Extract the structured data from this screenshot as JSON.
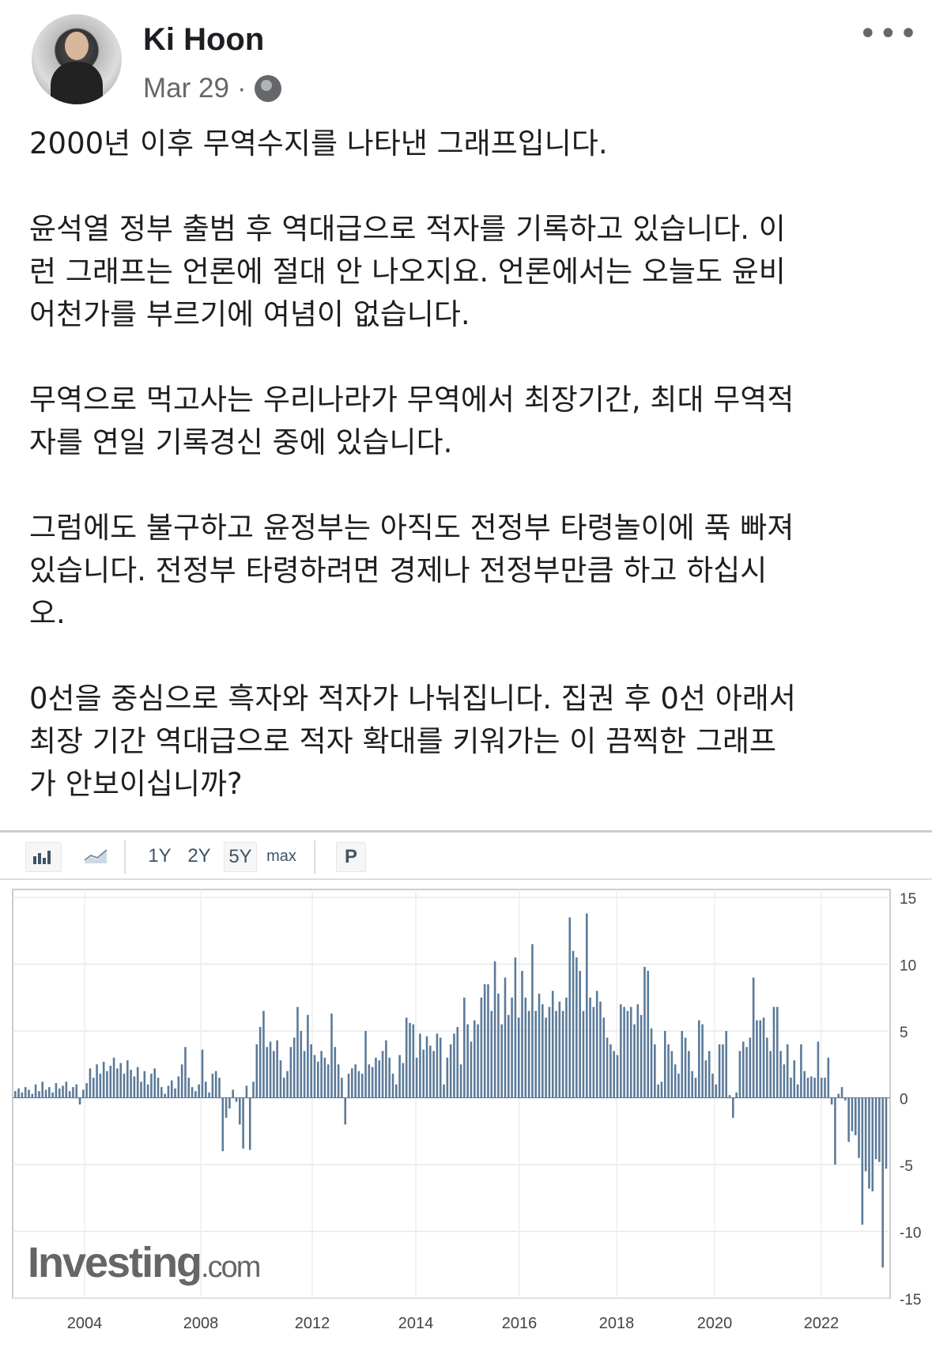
{
  "post": {
    "author": "Ki Hoon",
    "date": "Mar 29",
    "separator": "·",
    "privacy_icon": "globe-icon",
    "more_icon": "more-horizontal-icon",
    "more_label": "•••",
    "paragraphs": [
      [
        "2000년 이후 무역수지를 나타낸 그래프입니다."
      ],
      [
        "윤석열 정부 출범 후 역대급으로 적자를 기록하고 있습니다. 이",
        "런 그래프는 언론에 절대 안 나오지요. 언론에서는 오늘도 윤비",
        "어천가를 부르기에 여념이 없습니다."
      ],
      [
        "무역으로 먹고사는 우리나라가 무역에서 최장기간, 최대 무역적",
        "자를 연일 기록경신 중에 있습니다."
      ],
      [
        "그럼에도 불구하고 윤정부는 아직도 전정부 타령놀이에 푹 빠져",
        "있습니다. 전정부 타령하려면 경제나 전정부만큼 하고 하십시",
        "오."
      ],
      [
        "0선을 중심으로 흑자와 적자가 나눠집니다. 집권 후 0선 아래서",
        "최장 기간 역대급으로 적자 확대를 키워가는 이 끔찍한 그래프",
        "가 안보이십니까?"
      ]
    ]
  },
  "chart_toolbar": {
    "bar_chart_icon": "bar-chart-icon",
    "line_chart_icon": "line-chart-icon",
    "ranges": [
      "1Y",
      "2Y",
      "5Y",
      "max"
    ],
    "selected_range": "5Y",
    "p_label": "P"
  },
  "chart_data": {
    "type": "bar",
    "watermark": "Investing.com",
    "watermark_main": "Investing",
    "watermark_suffix": ".com",
    "bar_color": "#5b7a99",
    "ylim": [
      -15,
      15
    ],
    "y_ticks": [
      "15",
      "10",
      "5",
      "0",
      "-5",
      "-10",
      "-15"
    ],
    "x_ticks": [
      "2004",
      "2008",
      "2012",
      "2014",
      "2016",
      "2018",
      "2020",
      "2022"
    ],
    "grid": true,
    "values": [
      0.5,
      0.7,
      0.4,
      0.8,
      0.6,
      0.3,
      1.0,
      0.5,
      1.2,
      0.6,
      0.8,
      0.4,
      1.1,
      0.7,
      0.9,
      1.2,
      0.5,
      0.8,
      1.0,
      -0.5,
      0.6,
      1.1,
      2.2,
      1.5,
      2.5,
      1.8,
      2.7,
      2.0,
      2.4,
      3.0,
      2.2,
      2.6,
      1.8,
      2.8,
      2.1,
      1.6,
      2.3,
      1.2,
      2.0,
      1.0,
      1.8,
      2.2,
      1.5,
      0.8,
      0.3,
      0.9,
      1.3,
      0.7,
      1.6,
      2.5,
      3.8,
      1.5,
      0.8,
      0.5,
      1.0,
      3.6,
      1.2,
      0.4,
      1.8,
      2.0,
      1.5,
      -4.0,
      -1.5,
      -0.8,
      0.6,
      -0.3,
      -2.0,
      -3.8,
      0.9,
      -3.9,
      1.2,
      4.0,
      5.3,
      6.5,
      3.8,
      4.2,
      3.5,
      4.3,
      2.8,
      1.5,
      2.0,
      3.8,
      4.5,
      6.8,
      5.0,
      3.5,
      6.2,
      4.0,
      3.2,
      2.7,
      3.5,
      3.0,
      2.5,
      6.3,
      3.8,
      2.5,
      1.5,
      -2.0,
      1.8,
      2.2,
      2.5,
      2.0,
      1.8,
      5.0,
      2.5,
      2.3,
      3.0,
      2.8,
      3.5,
      4.3,
      3.0,
      1.8,
      1.0,
      3.2,
      2.6,
      6.0,
      5.6,
      5.5,
      3.0,
      4.8,
      3.6,
      4.6,
      3.9,
      3.5,
      4.8,
      4.5,
      1.0,
      3.0,
      4.0,
      4.8,
      5.3,
      2.5,
      7.5,
      5.5,
      4.2,
      5.8,
      5.5,
      7.5,
      8.5,
      8.5,
      6.5,
      10.2,
      7.8,
      5.5,
      9.0,
      6.2,
      7.5,
      10.5,
      6.0,
      9.5,
      7.5,
      6.5,
      11.5,
      6.5,
      7.8,
      7.0,
      6.0,
      6.8,
      8.0,
      6.5,
      7.2,
      6.5,
      7.5,
      13.5,
      11.0,
      10.5,
      9.5,
      6.5,
      13.8,
      7.5,
      6.8,
      8.0,
      7.2,
      6.0,
      4.5,
      4.0,
      3.5,
      3.2,
      7.0,
      6.8,
      6.5,
      6.8,
      5.5,
      7.0,
      6.2,
      9.8,
      9.5,
      5.2,
      4.0,
      1.0,
      1.2,
      5.0,
      4.0,
      3.5,
      2.5,
      1.8,
      5.0,
      4.5,
      3.5,
      2.0,
      1.5,
      5.8,
      5.5,
      2.8,
      3.5,
      1.8,
      1.0,
      4.0,
      4.0,
      5.0,
      0.2,
      -1.5,
      0.4,
      3.5,
      4.2,
      3.8,
      4.5,
      9.0,
      5.8,
      5.8,
      6.0,
      4.5,
      3.5,
      6.8,
      6.8,
      3.5,
      2.5,
      4.0,
      1.5,
      2.8,
      1.0,
      4.0,
      2.0,
      1.5,
      1.6,
      1.5,
      4.2,
      1.5,
      1.5,
      3.0,
      -0.5,
      -5.0,
      0.3,
      0.8,
      -0.2,
      -3.3,
      -2.5,
      -2.8,
      -4.5,
      -9.5,
      -5.5,
      -6.8,
      -7.0,
      -4.6,
      -4.8,
      -12.7,
      -5.3
    ]
  }
}
